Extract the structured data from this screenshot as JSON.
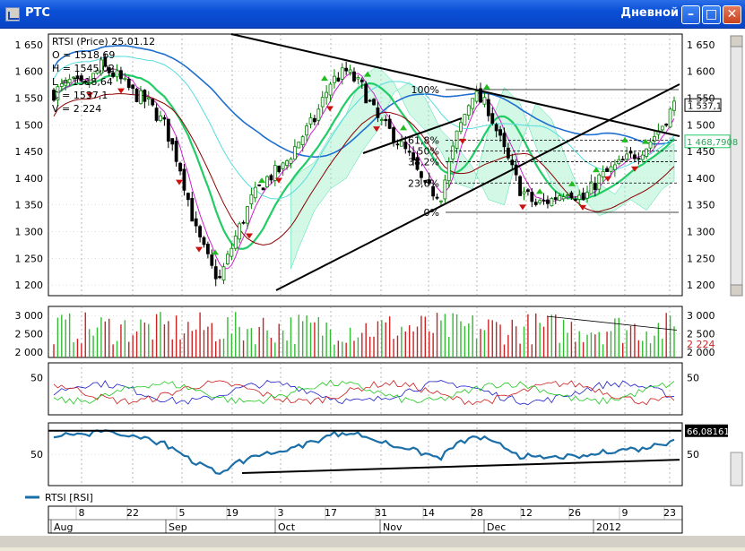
{
  "window": {
    "title": "РТС",
    "period": "Дневной",
    "minimize_icon": "minimize-icon",
    "maximize_icon": "maximize-icon",
    "close_icon": "close-icon"
  },
  "price_panel": {
    "info": [
      "RTSI (Price) 25.01.12",
      "O = 1518,69",
      "H = 1545,02",
      "L = 1518,64",
      "C = 1537,1",
      "V = 2 224"
    ],
    "y_ticks": [
      "1 650",
      "1 600",
      "1 550",
      "1 500",
      "1 450",
      "1 400",
      "1 350",
      "1 300",
      "1 250",
      "1 200"
    ],
    "y_tick_values": [
      1650,
      1600,
      1550,
      1500,
      1450,
      1400,
      1350,
      1300,
      1250,
      1200
    ],
    "ylim": [
      1180,
      1670
    ],
    "last_price_label": "1 537,1",
    "ma_label": "1 468,7908",
    "fib_labels": [
      "100%",
      "61,8%",
      "50%",
      "38,2%",
      "23,6%",
      "0%"
    ],
    "fib_values": [
      1566,
      1471,
      1451,
      1431,
      1391,
      1336
    ],
    "colors": {
      "up": "#008000",
      "down": "#000000",
      "ma_green": "#22cc66",
      "ma_blue": "#1e6fd0",
      "ma_magenta": "#cc22cc",
      "ma_darkred": "#8b0000",
      "cloud": "#00cc88",
      "arrow_up": "#22bb22",
      "arrow_down": "#cc1111"
    }
  },
  "volume_panel": {
    "y_ticks": [
      "3 000",
      "2 500",
      "2 000"
    ],
    "y_tick_values": [
      3000,
      2500,
      2000
    ],
    "ylim": [
      1850,
      3250
    ],
    "last_label": "2 224",
    "colors": {
      "up": "#33bb33",
      "down": "#cc2222"
    }
  },
  "dmi_panel": {
    "y_ticks": [
      "50"
    ],
    "y_tick_values": [
      50
    ],
    "ylim": [
      0,
      70
    ]
  },
  "rsi_panel": {
    "y_ticks": [
      "50"
    ],
    "y_tick_values": [
      50
    ],
    "ylim": [
      10,
      90
    ],
    "last_label": "66,08161",
    "legend": "RTSI [RSI]",
    "color": "#1b6fa8"
  },
  "x_axis": {
    "days": [
      "8",
      "22",
      "5",
      "19",
      "3",
      "17",
      "31",
      "14",
      "28",
      "12",
      "26",
      "9",
      "23"
    ],
    "months": [
      "Aug",
      "Sep",
      "Oct",
      "Nov",
      "Dec",
      "2012"
    ]
  }
}
